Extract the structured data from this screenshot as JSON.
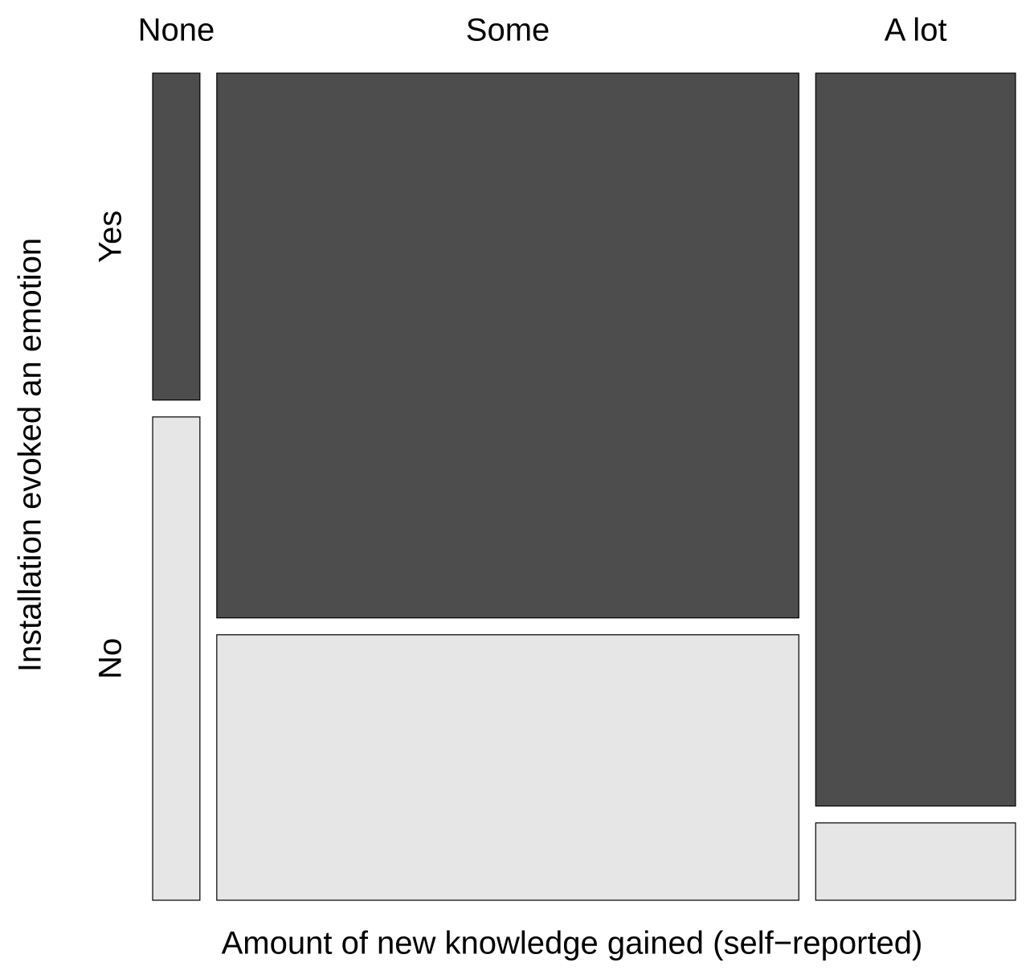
{
  "chart_data": {
    "type": "mosaic",
    "x_label": "Amount of new knowledge gained (self−reported)",
    "y_label": "Installation evoked an emotion",
    "categories": [
      "None",
      "Some",
      "A lot"
    ],
    "series": [
      {
        "name": "Yes",
        "color": "#4d4d4d",
        "values": [
          2.3,
          47.2,
          21.8
        ]
      },
      {
        "name": "No",
        "color": "#e6e6e6",
        "values": [
          3.4,
          23.0,
          2.3
        ]
      }
    ]
  }
}
